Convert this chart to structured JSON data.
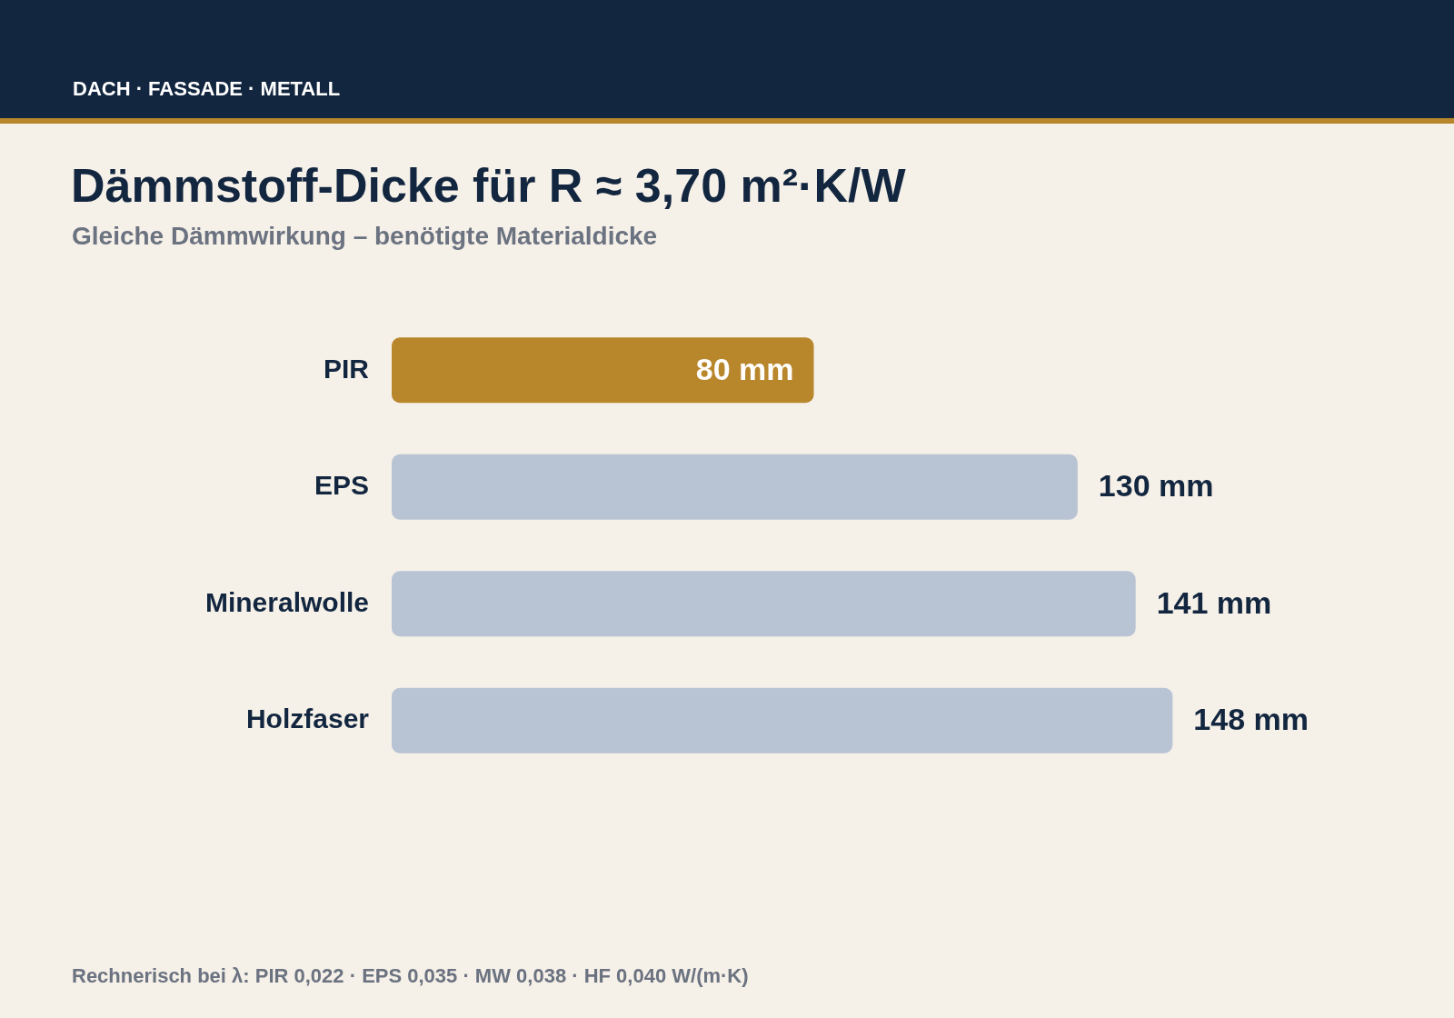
{
  "chart_data": {
    "type": "bar",
    "orientation": "horizontal",
    "title": "Dämmstoff-Dicke für R ≈ 3,70 m²·K/W",
    "subtitle": "Gleiche Dämmwirkung – benötigte Materialdicke",
    "categories": [
      "PIR",
      "EPS",
      "Mineralwolle",
      "Holzfaser"
    ],
    "values": [
      80,
      130,
      141,
      148
    ],
    "colors": [
      "#b8862b",
      "#b8c3d4",
      "#b8c3d4",
      "#b8c3d4"
    ],
    "value_labels": [
      "80 mm",
      "130 mm",
      "141 mm",
      "148 mm"
    ],
    "annotations": [
      "DACH · FASSADE · METALL",
      "Rechnerisch bei λ: PIR 0,022 · EPS 0,035 · MW 0,038 · HF 0,040 W/(m·K)"
    ],
    "grid": false,
    "legend": false
  }
}
